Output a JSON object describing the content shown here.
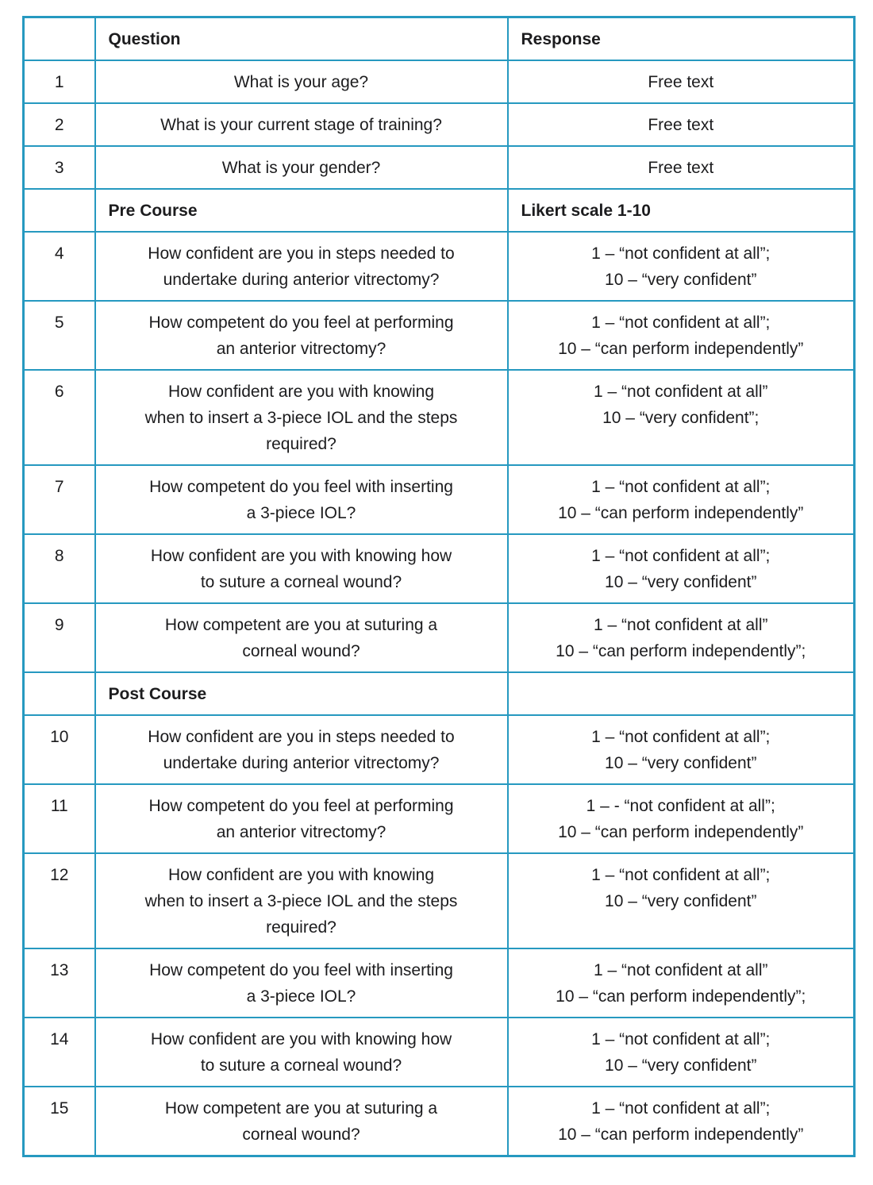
{
  "colors": {
    "table_border": "#2699c0",
    "text": "#1c1c1e"
  },
  "table": {
    "header": {
      "num": "",
      "question": [
        "Question"
      ],
      "response": [
        "Response"
      ]
    },
    "rows": [
      {
        "style": "item",
        "num": "1",
        "question": [
          "What is your age?"
        ],
        "response": [
          "Free text"
        ]
      },
      {
        "style": "item",
        "num": "2",
        "question": [
          "What is your current stage of training?"
        ],
        "response": [
          "Free text"
        ]
      },
      {
        "style": "item",
        "num": "3",
        "question": [
          "What is your gender?"
        ],
        "response": [
          "Free text"
        ]
      },
      {
        "style": "section",
        "num": "",
        "question": [
          "Pre Course"
        ],
        "response": [
          "Likert scale 1-10"
        ]
      },
      {
        "style": "item",
        "num": "4",
        "question": [
          "How confident are you in steps needed to",
          "undertake during anterior vitrectomy?"
        ],
        "response": [
          "1 – “not confident at all”;",
          "10 – “very confident”"
        ]
      },
      {
        "style": "item",
        "num": "5",
        "question": [
          "How competent do you feel at performing",
          "an anterior vitrectomy?"
        ],
        "response": [
          "1 – “not confident at all”;",
          "10 – “can perform independently”"
        ]
      },
      {
        "style": "item",
        "num": "6",
        "question": [
          "How confident are you with knowing",
          "when to insert a 3-piece IOL and the steps",
          "required?"
        ],
        "response": [
          "1 – “not confident at all”",
          "10 – “very confident”;"
        ]
      },
      {
        "style": "item",
        "num": "7",
        "question": [
          "How competent do you feel with inserting",
          "a 3-piece IOL?"
        ],
        "response": [
          "1 –  “not confident at all”;",
          "10 – “can perform independently”"
        ]
      },
      {
        "style": "item",
        "num": "8",
        "question": [
          "How confident are you with knowing how",
          "to suture a corneal wound?"
        ],
        "response": [
          "1 – “not confident at all”;",
          "10 – “very confident”"
        ]
      },
      {
        "style": "item",
        "num": "9",
        "question": [
          "How competent are you at suturing a",
          "corneal wound?"
        ],
        "response": [
          "1 – “not confident at all”",
          "10 – “can perform independently”;"
        ]
      },
      {
        "style": "section",
        "num": "",
        "question": [
          "Post Course"
        ],
        "response": []
      },
      {
        "style": "item",
        "num": "10",
        "question": [
          "How confident are you in steps needed to",
          "undertake during anterior vitrectomy?"
        ],
        "response": [
          "1 – “not confident at all”;",
          "10 – “very confident”"
        ]
      },
      {
        "style": "item",
        "num": "11",
        "question": [
          "How competent do you feel at performing",
          "an anterior vitrectomy?"
        ],
        "response": [
          "1 – - “not confident at all”;",
          "10 – “can perform independently”"
        ]
      },
      {
        "style": "item",
        "num": "12",
        "question": [
          "How confident are you with knowing",
          "when to insert a 3-piece IOL and the steps",
          "required?"
        ],
        "response": [
          "1 – “not confident at all”;",
          "10 – “very confident”"
        ]
      },
      {
        "style": "item",
        "num": "13",
        "question": [
          "How competent do you feel with inserting",
          "a 3-piece IOL?"
        ],
        "response": [
          "1 – “not confident at all”",
          "10 – “can perform independently”;"
        ]
      },
      {
        "style": "item",
        "num": "14",
        "question": [
          "How confident are you with knowing how",
          "to suture a corneal wound?"
        ],
        "response": [
          "1 – “not confident at all”;",
          "10 – “very confident”"
        ]
      },
      {
        "style": "item",
        "num": "15",
        "question": [
          "How competent are you at suturing a",
          "corneal wound?"
        ],
        "response": [
          "1 – “not confident at all”;",
          "10 – “can perform independently”"
        ]
      }
    ]
  }
}
